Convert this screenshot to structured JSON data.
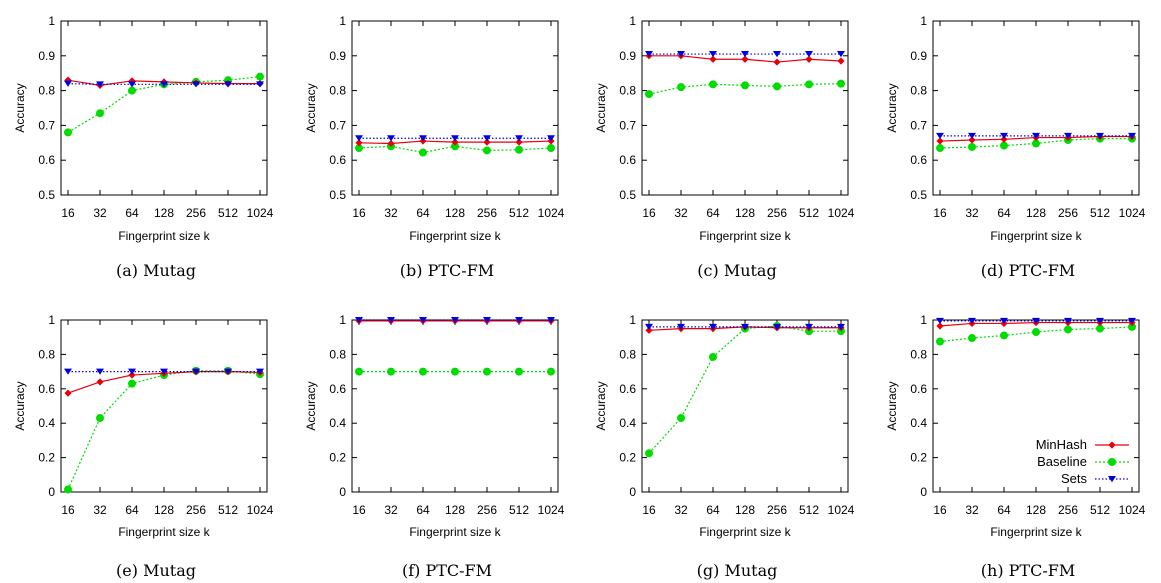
{
  "colors": {
    "minhash": "#e8000b",
    "baseline": "#00dc00",
    "sets": "#0000dd"
  },
  "legend": {
    "placement": "bottom-right of last panel",
    "entries": [
      "MinHash",
      "Baseline",
      "Sets"
    ]
  },
  "chart_data": [
    {
      "type": "line",
      "caption": "(a) Mutag",
      "xlabel": "Fingerprint size k",
      "ylabel": "Accuracy",
      "categories": [
        "16",
        "32",
        "64",
        "128",
        "256",
        "512",
        "1024"
      ],
      "ylim": [
        0.5,
        1
      ],
      "yticks": [
        "0.5",
        "0.6",
        "0.7",
        "0.8",
        "0.9",
        "1"
      ],
      "series": [
        {
          "name": "MinHash",
          "values": [
            0.83,
            0.815,
            0.828,
            0.825,
            0.822,
            0.82,
            0.82
          ]
        },
        {
          "name": "Baseline",
          "values": [
            0.68,
            0.735,
            0.8,
            0.818,
            0.825,
            0.83,
            0.84
          ]
        },
        {
          "name": "Sets",
          "values": [
            0.82,
            0.818,
            0.818,
            0.818,
            0.818,
            0.818,
            0.818
          ]
        }
      ]
    },
    {
      "type": "line",
      "caption": "(b) PTC-FM",
      "xlabel": "Fingerprint size k",
      "ylabel": "Accuracy",
      "categories": [
        "16",
        "32",
        "64",
        "128",
        "256",
        "512",
        "1024"
      ],
      "ylim": [
        0.5,
        1
      ],
      "yticks": [
        "0.5",
        "0.6",
        "0.7",
        "0.8",
        "0.9",
        "1"
      ],
      "series": [
        {
          "name": "MinHash",
          "values": [
            0.65,
            0.648,
            0.655,
            0.652,
            0.652,
            0.652,
            0.655
          ]
        },
        {
          "name": "Baseline",
          "values": [
            0.635,
            0.64,
            0.622,
            0.64,
            0.628,
            0.63,
            0.635
          ]
        },
        {
          "name": "Sets",
          "values": [
            0.663,
            0.663,
            0.663,
            0.663,
            0.663,
            0.663,
            0.663
          ]
        }
      ]
    },
    {
      "type": "line",
      "caption": "(c) Mutag",
      "xlabel": "Fingerprint size k",
      "ylabel": "Accuracy",
      "categories": [
        "16",
        "32",
        "64",
        "128",
        "256",
        "512",
        "1024"
      ],
      "ylim": [
        0.5,
        1
      ],
      "yticks": [
        "0.5",
        "0.6",
        "0.7",
        "0.8",
        "0.9",
        "1"
      ],
      "series": [
        {
          "name": "MinHash",
          "values": [
            0.9,
            0.9,
            0.89,
            0.89,
            0.882,
            0.89,
            0.885
          ]
        },
        {
          "name": "Baseline",
          "values": [
            0.79,
            0.81,
            0.818,
            0.815,
            0.812,
            0.818,
            0.82
          ]
        },
        {
          "name": "Sets",
          "values": [
            0.905,
            0.905,
            0.905,
            0.905,
            0.905,
            0.905,
            0.905
          ]
        }
      ]
    },
    {
      "type": "line",
      "caption": "(d) PTC-FM",
      "xlabel": "Fingerprint size k",
      "ylabel": "Accuracy",
      "categories": [
        "16",
        "32",
        "64",
        "128",
        "256",
        "512",
        "1024"
      ],
      "ylim": [
        0.5,
        1
      ],
      "yticks": [
        "0.5",
        "0.6",
        "0.7",
        "0.8",
        "0.9",
        "1"
      ],
      "series": [
        {
          "name": "MinHash",
          "values": [
            0.655,
            0.658,
            0.66,
            0.665,
            0.665,
            0.668,
            0.668
          ]
        },
        {
          "name": "Baseline",
          "values": [
            0.635,
            0.638,
            0.642,
            0.648,
            0.658,
            0.662,
            0.662
          ]
        },
        {
          "name": "Sets",
          "values": [
            0.67,
            0.67,
            0.67,
            0.67,
            0.67,
            0.67,
            0.67
          ]
        }
      ]
    },
    {
      "type": "line",
      "caption": "(e) Mutag",
      "xlabel": "Fingerprint size k",
      "ylabel": "Accuracy",
      "categories": [
        "16",
        "32",
        "64",
        "128",
        "256",
        "512",
        "1024"
      ],
      "ylim": [
        0,
        1
      ],
      "yticks": [
        "0",
        "0.2",
        "0.4",
        "0.6",
        "0.8",
        "1"
      ],
      "series": [
        {
          "name": "MinHash",
          "values": [
            0.575,
            0.64,
            0.68,
            0.69,
            0.7,
            0.7,
            0.695
          ]
        },
        {
          "name": "Baseline",
          "values": [
            0.015,
            0.43,
            0.63,
            0.68,
            0.705,
            0.705,
            0.685
          ]
        },
        {
          "name": "Sets",
          "values": [
            0.7,
            0.7,
            0.7,
            0.7,
            0.7,
            0.7,
            0.7
          ]
        }
      ]
    },
    {
      "type": "line",
      "caption": "(f) PTC-FM",
      "xlabel": "Fingerprint size k",
      "ylabel": "Accuracy",
      "categories": [
        "16",
        "32",
        "64",
        "128",
        "256",
        "512",
        "1024"
      ],
      "ylim": [
        0,
        1
      ],
      "yticks": [
        "0",
        "0.2",
        "0.4",
        "0.6",
        "0.8",
        "1"
      ],
      "series": [
        {
          "name": "MinHash",
          "values": [
            0.995,
            0.995,
            0.995,
            0.995,
            0.995,
            0.995,
            0.995
          ]
        },
        {
          "name": "Baseline",
          "values": [
            0.7,
            0.7,
            0.7,
            0.7,
            0.7,
            0.7,
            0.7
          ]
        },
        {
          "name": "Sets",
          "values": [
            1.0,
            1.0,
            1.0,
            1.0,
            1.0,
            1.0,
            1.0
          ]
        }
      ]
    },
    {
      "type": "line",
      "caption": "(g) Mutag",
      "xlabel": "Fingerprint size k",
      "ylabel": "Accuracy",
      "categories": [
        "16",
        "32",
        "64",
        "128",
        "256",
        "512",
        "1024"
      ],
      "ylim": [
        0,
        1
      ],
      "yticks": [
        "0",
        "0.2",
        "0.4",
        "0.6",
        "0.8",
        "1"
      ],
      "series": [
        {
          "name": "MinHash",
          "values": [
            0.94,
            0.95,
            0.95,
            0.96,
            0.955,
            0.955,
            0.955
          ]
        },
        {
          "name": "Baseline",
          "values": [
            0.225,
            0.43,
            0.785,
            0.95,
            0.965,
            0.935,
            0.935
          ]
        },
        {
          "name": "Sets",
          "values": [
            0.96,
            0.96,
            0.96,
            0.96,
            0.96,
            0.96,
            0.96
          ]
        }
      ]
    },
    {
      "type": "line",
      "caption": "(h) PTC-FM",
      "xlabel": "Fingerprint size k",
      "ylabel": "Accuracy",
      "categories": [
        "16",
        "32",
        "64",
        "128",
        "256",
        "512",
        "1024"
      ],
      "ylim": [
        0,
        1
      ],
      "yticks": [
        "0",
        "0.2",
        "0.4",
        "0.6",
        "0.8",
        "1"
      ],
      "series": [
        {
          "name": "MinHash",
          "values": [
            0.965,
            0.98,
            0.98,
            0.985,
            0.985,
            0.985,
            0.985
          ]
        },
        {
          "name": "Baseline",
          "values": [
            0.875,
            0.895,
            0.91,
            0.93,
            0.945,
            0.95,
            0.96
          ]
        },
        {
          "name": "Sets",
          "values": [
            0.995,
            0.995,
            0.995,
            0.995,
            0.995,
            0.995,
            0.995
          ]
        }
      ]
    }
  ]
}
